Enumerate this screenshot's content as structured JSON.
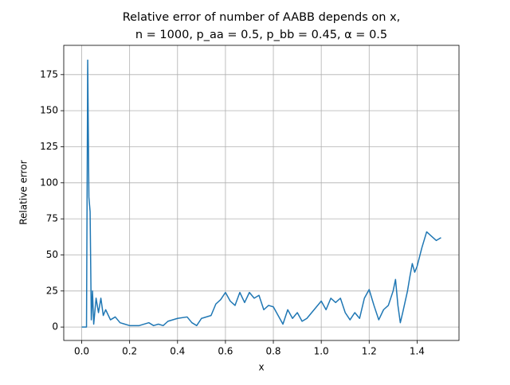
{
  "chart_data": {
    "type": "line",
    "title": [
      "Relative error of number of AABB depends on x,",
      "n = 1000, p_aa = 0.5, p_bb = 0.45, α = 0.5"
    ],
    "x_label": "x",
    "y_label": "Relative error",
    "x": [
      0,
      0.01,
      0.02,
      0.025,
      0.03,
      0.035,
      0.04,
      0.045,
      0.05,
      0.06,
      0.07,
      0.08,
      0.09,
      0.1,
      0.12,
      0.14,
      0.16,
      0.18,
      0.2,
      0.24,
      0.28,
      0.3,
      0.32,
      0.34,
      0.36,
      0.4,
      0.44,
      0.46,
      0.48,
      0.5,
      0.54,
      0.56,
      0.58,
      0.6,
      0.62,
      0.64,
      0.66,
      0.68,
      0.7,
      0.72,
      0.74,
      0.76,
      0.78,
      0.8,
      0.82,
      0.84,
      0.86,
      0.88,
      0.9,
      0.92,
      0.94,
      0.96,
      0.98,
      1.0,
      1.02,
      1.04,
      1.06,
      1.08,
      1.1,
      1.12,
      1.14,
      1.16,
      1.18,
      1.2,
      1.22,
      1.24,
      1.26,
      1.28,
      1.3,
      1.31,
      1.32,
      1.33,
      1.34,
      1.36,
      1.37,
      1.38,
      1.39,
      1.4,
      1.42,
      1.44,
      1.46,
      1.48,
      1.5
    ],
    "series": [
      {
        "color": "#1f77b4",
        "values": [
          0,
          0,
          0,
          185,
          90,
          80,
          5,
          25,
          2,
          20,
          10,
          20,
          8,
          12,
          5,
          7,
          3,
          2,
          1,
          1,
          3,
          1,
          2,
          1,
          4,
          6,
          7,
          3,
          1,
          6,
          8,
          16,
          19,
          24,
          18,
          15,
          24,
          17,
          24,
          20,
          22,
          12,
          15,
          14,
          8,
          2,
          12,
          6,
          10,
          4,
          6,
          10,
          14,
          18,
          12,
          20,
          17,
          20,
          10,
          5,
          10,
          6,
          20,
          26,
          15,
          5,
          12,
          15,
          25,
          33,
          15,
          3,
          10,
          25,
          35,
          44,
          38,
          42,
          55,
          66,
          63,
          60,
          62
        ]
      }
    ],
    "xlim": [
      -0.075,
      1.575
    ],
    "xticks": [
      {
        "value": 0,
        "label": "0.0"
      },
      0.2,
      0.4,
      0.6,
      0.8,
      {
        "value": 1,
        "label": "1.0"
      },
      1.2,
      1.4
    ],
    "ylim": [
      -9.3,
      195.3
    ],
    "yticks": [
      0,
      25,
      50,
      75,
      100,
      125,
      150,
      175
    ],
    "grid": true
  }
}
